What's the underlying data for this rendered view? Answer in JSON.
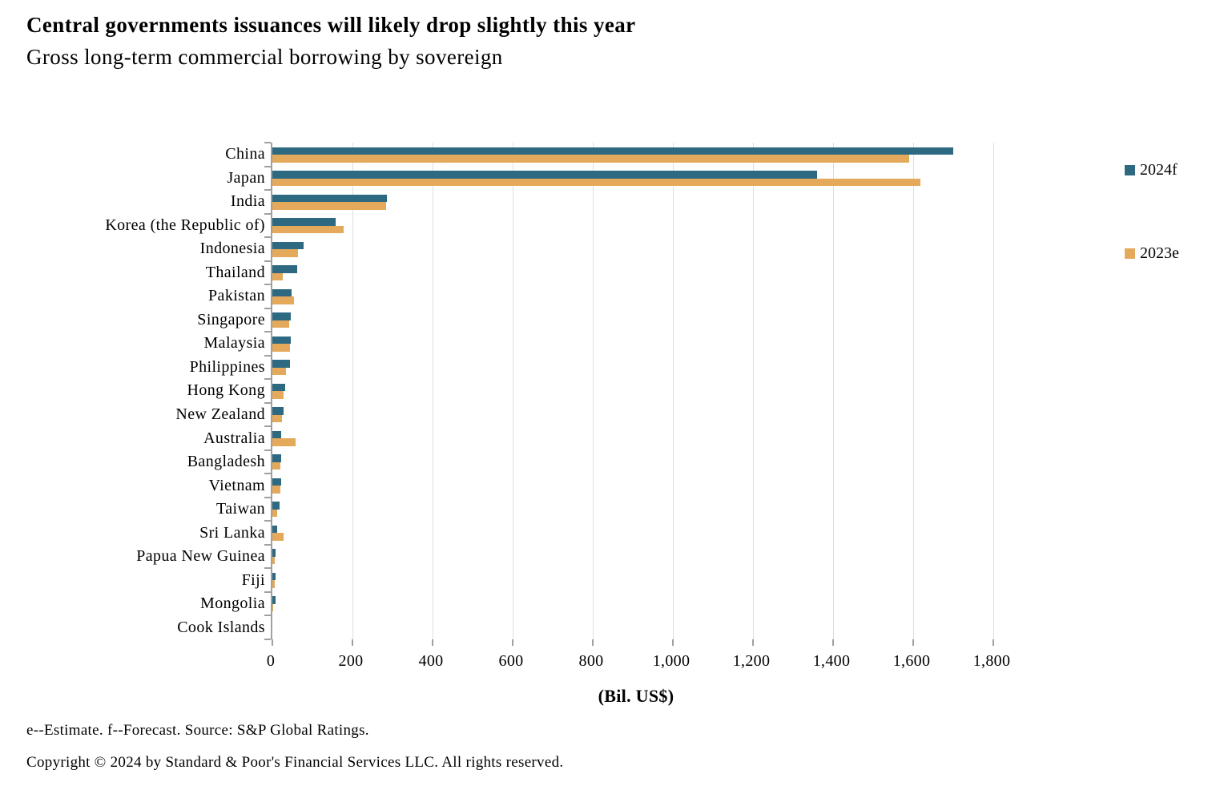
{
  "header": {
    "title": "Central governments issuances will likely drop slightly this year",
    "subtitle": "Gross long-term commercial borrowing by sovereign"
  },
  "chart_data": {
    "type": "bar",
    "orientation": "horizontal",
    "title": "Central governments issuances will likely drop slightly this year",
    "subtitle": "Gross long-term commercial borrowing by sovereign",
    "xlabel": "(Bil. US$)",
    "ylabel": "",
    "xlim": [
      0,
      1824
    ],
    "x_ticks": [
      "0",
      "200",
      "400",
      "600",
      "800",
      "1,000",
      "1,200",
      "1,400",
      "1,600",
      "1,800"
    ],
    "grid": "vertical",
    "legend_position": "right",
    "grid_color": "#dedede",
    "axis_color": "#a0a0a0",
    "categories": [
      "China",
      "Japan",
      "India",
      "Korea (the Republic of)",
      "Indonesia",
      "Thailand",
      "Pakistan",
      "Singapore",
      "Malaysia",
      "Philippines",
      "Hong Kong",
      "New Zealand",
      "Australia",
      "Bangladesh",
      "Vietnam",
      "Taiwan",
      "Sri Lanka",
      "Papua New Guinea",
      "Fiji",
      "Mongolia",
      "Cook Islands"
    ],
    "series": [
      {
        "name": "2024f",
        "color": "#2e6982",
        "values": [
          1700,
          1360,
          285,
          158,
          78,
          62,
          48,
          46,
          45,
          43,
          32,
          28,
          21,
          22,
          21,
          17,
          11,
          8,
          8,
          8,
          0
        ]
      },
      {
        "name": "2023e",
        "color": "#e4a95a",
        "values": [
          1590,
          1617,
          283,
          177,
          64,
          26,
          53,
          42,
          43,
          33,
          27,
          23,
          57,
          19,
          20,
          12,
          27,
          5,
          6,
          1,
          0
        ]
      }
    ]
  },
  "footer": {
    "note": "e--Estimate. f--Forecast. Source: S&P Global Ratings.",
    "copyright": "Copyright © 2024 by Standard & Poor's Financial Services LLC. All rights reserved."
  }
}
